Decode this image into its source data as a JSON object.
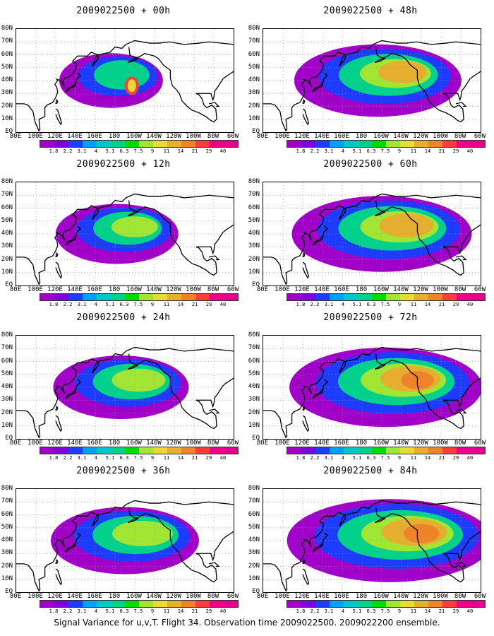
{
  "figure": {
    "caption": "Signal Variance for u,v,T. Flight 34. Observation time 2009022500. 2009022200 ensemble."
  },
  "axes": {
    "lat_labels": [
      "80N",
      "70N",
      "60N",
      "50N",
      "40N",
      "30N",
      "20N",
      "10N",
      "EQ"
    ],
    "lon_labels": [
      "80E",
      "100E",
      "120E",
      "140E",
      "160E",
      "180",
      "160W",
      "140W",
      "120W",
      "100W",
      "80W",
      "60W"
    ]
  },
  "colorbar": {
    "labels": [
      "1.8",
      "2.2",
      "3.1",
      "4",
      "5.1",
      "6.3",
      "7.5",
      "9",
      "11",
      "14",
      "21",
      "29",
      "40"
    ],
    "colors": [
      "#a000c8",
      "#8200dc",
      "#1e3cff",
      "#00a0ff",
      "#00c8c8",
      "#00d28c",
      "#00dc00",
      "#a0e632",
      "#e6dc32",
      "#e6af2d",
      "#f08228",
      "#fa3c3c",
      "#f00082"
    ]
  },
  "panels": [
    {
      "title": "2009022500 + 00h",
      "intensity": 0.15
    },
    {
      "title": "2009022500 + 12h",
      "intensity": 0.3
    },
    {
      "title": "2009022500 + 24h",
      "intensity": 0.4
    },
    {
      "title": "2009022500 + 36h",
      "intensity": 0.5
    },
    {
      "title": "2009022500 + 48h",
      "intensity": 0.65
    },
    {
      "title": "2009022500 + 60h",
      "intensity": 0.75
    },
    {
      "title": "2009022500 + 72h",
      "intensity": 0.85
    },
    {
      "title": "2009022500 + 84h",
      "intensity": 0.95
    }
  ]
}
